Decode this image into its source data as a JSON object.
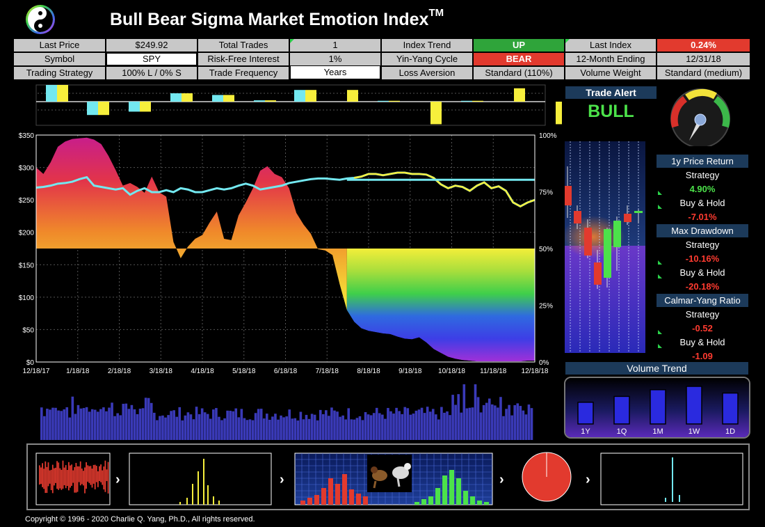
{
  "header": {
    "title": "Bull Bear Sigma Market Emotion Index",
    "tm": "TM"
  },
  "info": {
    "last_price_label": "Last Price",
    "last_price": "$249.92",
    "total_trades_label": "Total Trades",
    "total_trades": "1",
    "index_trend_label": "Index Trend",
    "index_trend": "UP",
    "last_index_label": "Last Index",
    "last_index": "0.24%",
    "symbol_label": "Symbol",
    "symbol": "SPY",
    "risk_free_label": "Risk-Free Interest",
    "risk_free": "1%",
    "yinyang_label": "Yin-Yang Cycle",
    "yinyang": "BEAR",
    "month_ending_label": "12-Month Ending",
    "month_ending": "12/31/18",
    "strategy_label": "Trading Strategy",
    "strategy": "100% L / 0% S",
    "frequency_label": "Trade Frequency",
    "frequency": "Years",
    "loss_aversion_label": "Loss Aversion",
    "loss_aversion": "Standard (110%)",
    "volume_weight_label": "Volume Weight",
    "volume_weight": "Standard (medium)"
  },
  "trade_alert": {
    "title": "Trade Alert",
    "value": "BULL"
  },
  "stats": {
    "price_return_title": "1y Price Return",
    "strategy_label": "Strategy",
    "buyhold_label": "Buy & Hold",
    "price_return_strategy": "4.90%",
    "price_return_buyhold": "-7.01%",
    "max_drawdown_title": "Max Drawdown",
    "max_drawdown_strategy": "-10.16%",
    "max_drawdown_buyhold": "-20.18%",
    "calmar_title": "Calmar-Yang Ratio",
    "calmar_strategy": "-0.52",
    "calmar_buyhold": "-1.09"
  },
  "volume_trend": {
    "title": "Volume Trend",
    "labels": [
      "1Y",
      "1Q",
      "1M",
      "1W",
      "1D"
    ],
    "values": [
      0.52,
      0.66,
      0.82,
      0.9,
      0.74
    ]
  },
  "copyright": "Copyright © 1996 - 2020 Charlie Q. Yang, Ph.D., All rights reserved.",
  "colors": {
    "accent_green": "#4ce24a",
    "accent_red": "#ff3b30",
    "panel_blue": "#1c3a5a",
    "cyan": "#73e8f0",
    "yellow": "#f7ef3c"
  },
  "chart_data": {
    "type": "area",
    "x_tick_labels": [
      "12/18/17",
      "1/18/18",
      "2/18/18",
      "3/18/18",
      "4/18/18",
      "5/18/18",
      "6/18/18",
      "7/18/18",
      "8/18/18",
      "9/18/18",
      "10/18/18",
      "11/18/18",
      "12/18/18"
    ],
    "y_left_labels": [
      "$350",
      "$300",
      "$250",
      "$200",
      "$150",
      "$100",
      "$50",
      "$0"
    ],
    "y_right_labels": [
      "100%",
      "75%",
      "50%",
      "25%",
      "0%"
    ],
    "ylim_left": [
      0,
      350
    ],
    "ylim_right": [
      0,
      100
    ],
    "bull_bear_sigma": [
      300,
      290,
      308,
      332,
      340,
      344,
      345,
      346,
      343,
      336,
      318,
      296,
      272,
      276,
      270,
      261,
      286,
      262,
      255,
      185,
      160,
      178,
      190,
      196,
      215,
      232,
      190,
      188,
      226,
      246,
      268,
      295,
      302,
      290,
      285,
      268,
      230,
      212,
      198,
      174,
      172,
      165,
      120,
      80,
      62,
      52,
      48,
      46,
      44,
      43,
      39,
      36,
      35,
      38,
      30,
      20,
      14,
      8,
      5,
      3,
      2,
      1,
      1,
      1,
      1,
      1,
      1,
      1,
      2,
      2
    ],
    "strategy_line": [
      269,
      270,
      272,
      275,
      276,
      278,
      282,
      285,
      272,
      270,
      268,
      266,
      268,
      258,
      264,
      268,
      262,
      262,
      265,
      262,
      268,
      266,
      262,
      262,
      265,
      268,
      266,
      268,
      272,
      275,
      272,
      266,
      268,
      270,
      272,
      276,
      278,
      280,
      282,
      283,
      283,
      282,
      281,
      283,
      284,
      286,
      290,
      290,
      288,
      290,
      292,
      292,
      290,
      290,
      289,
      284,
      274,
      268,
      272,
      270,
      264,
      272,
      277,
      268,
      271,
      264,
      246,
      240,
      246,
      250
    ],
    "price_line": [
      null,
      null,
      null,
      null,
      null,
      null,
      null,
      null,
      null,
      null,
      null,
      null,
      null,
      null,
      null,
      null,
      null,
      null,
      null,
      null,
      null,
      null,
      null,
      null,
      null,
      null,
      null,
      null,
      null,
      null,
      null,
      null,
      null,
      null,
      null,
      null,
      null,
      null,
      null,
      null,
      null,
      null,
      null,
      null,
      284,
      286,
      290,
      290,
      288,
      290,
      292,
      292,
      290,
      290,
      289,
      284,
      274,
      268,
      272,
      270,
      264,
      272,
      277,
      268,
      271,
      264,
      246,
      240,
      246,
      250
    ],
    "cyan_flat_level": 281,
    "regime_boundary_index": 43
  }
}
